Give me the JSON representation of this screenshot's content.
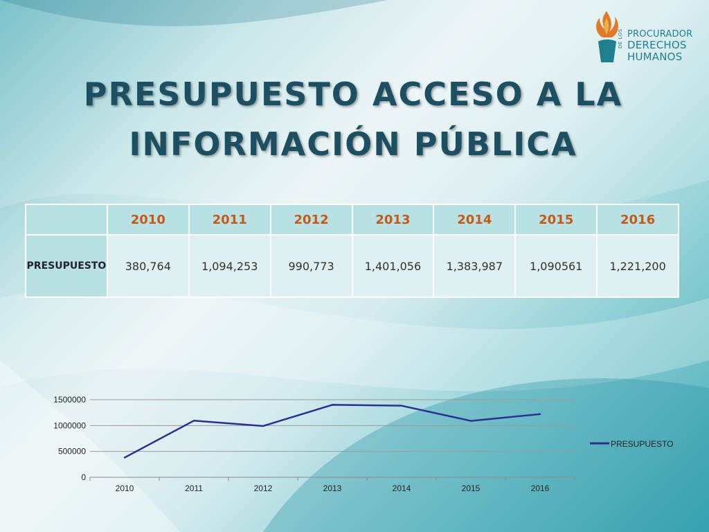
{
  "slide": {
    "title_line1": "PRESUPUESTO ACCESO A LA",
    "title_line2": "INFORMACIÓN PÚBLICA"
  },
  "logo": {
    "line1": "PROCURADOR",
    "line2": "DERECHOS",
    "line3": "HUMANOS",
    "vertical": "DE LOS"
  },
  "table": {
    "corner": "",
    "years": [
      "2010",
      "2011",
      "2012",
      "2013",
      "2014",
      "2015",
      "2016"
    ],
    "row_label": "PRESUPUESTO",
    "values": [
      "380,764",
      "1,094,253",
      "990,773",
      "1,401,056",
      "1,383,987",
      "1,090561",
      "1,221,200"
    ]
  },
  "colors": {
    "title": "#1d4f63",
    "year_header": "#c45a18",
    "series_line": "#2b2f8f"
  },
  "chart_data": {
    "type": "line",
    "categories": [
      "2010",
      "2011",
      "2012",
      "2013",
      "2014",
      "2015",
      "2016"
    ],
    "series": [
      {
        "name": "PRESUPUESTO",
        "values": [
          380764,
          1094253,
          990773,
          1401056,
          1383987,
          1090561,
          1221200
        ]
      }
    ],
    "ylim": [
      0,
      1500000
    ],
    "yticks": [
      "0",
      "500000",
      "1000000",
      "1500000"
    ],
    "grid": true,
    "legend": "right"
  }
}
